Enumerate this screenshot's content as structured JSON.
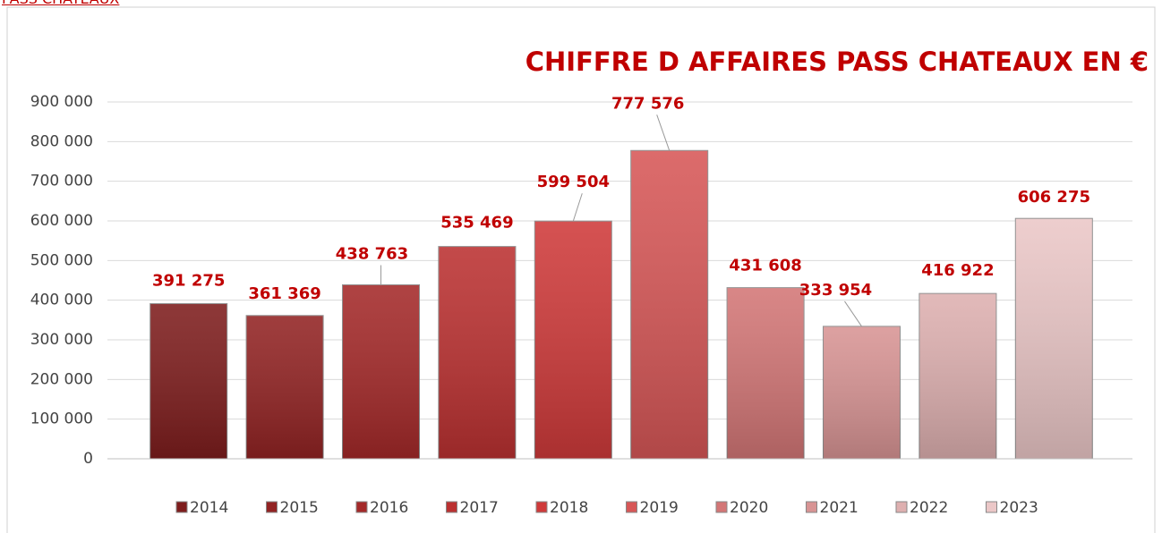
{
  "link": "PASS CHATEAUX",
  "chart_data": {
    "type": "bar",
    "title": "CHIFFRE D AFFAIRES PASS CHATEAUX EN €",
    "categories": [
      "2014",
      "2015",
      "2016",
      "2017",
      "2018",
      "2019",
      "2020",
      "2021",
      "2022",
      "2023"
    ],
    "values": [
      391275,
      361369,
      438763,
      535469,
      599504,
      777576,
      431608,
      333954,
      416922,
      606275
    ],
    "value_labels": [
      "391 275",
      "361 369",
      "438 763",
      "535 469",
      "599 504",
      "777 576",
      "431 608",
      "333 954",
      "416 922",
      "606 275"
    ],
    "colors": [
      "#7e1d1d",
      "#922323",
      "#a42929",
      "#bb3131",
      "#cf3a3a",
      "#d75757",
      "#d37676",
      "#d89494",
      "#deb0b0",
      "#ebc7c7"
    ],
    "ylim": [
      0,
      900000
    ],
    "yticks": [
      {
        "value": 0,
        "label": "0"
      },
      {
        "value": 100000,
        "label": "100 000"
      },
      {
        "value": 200000,
        "label": "200 000"
      },
      {
        "value": 300000,
        "label": "300 000"
      },
      {
        "value": 400000,
        "label": "400 000"
      },
      {
        "value": 500000,
        "label": "500 000"
      },
      {
        "value": 600000,
        "label": "600 000"
      },
      {
        "value": 700000,
        "label": "700 000"
      },
      {
        "value": 800000,
        "label": "800 000"
      },
      {
        "value": 900000,
        "label": "900 000"
      }
    ],
    "grid": true,
    "legend": "bottom",
    "label_color": "#c00000"
  }
}
